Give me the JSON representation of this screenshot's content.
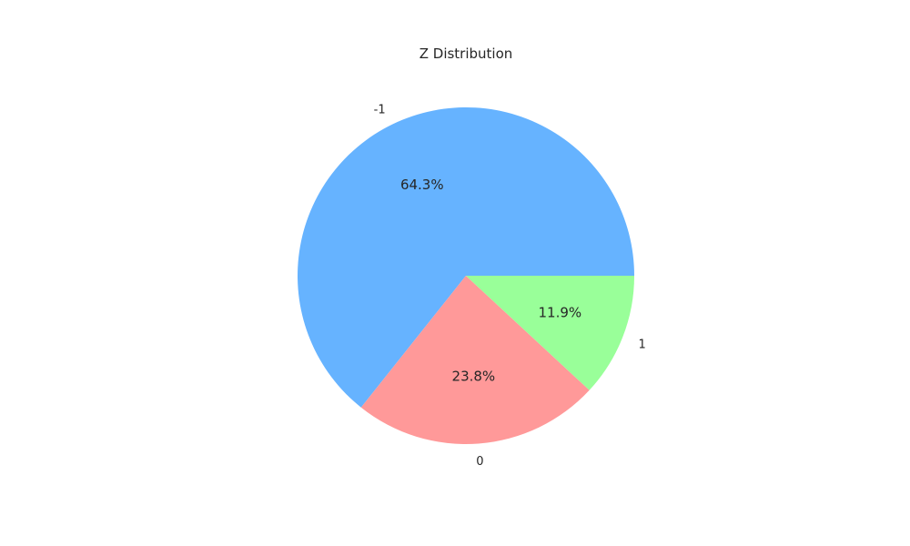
{
  "chart_data": {
    "type": "pie",
    "title": "Z Distribution",
    "categories": [
      "-1",
      "0",
      "1"
    ],
    "values": [
      64.3,
      23.8,
      11.9
    ],
    "percent_labels": [
      "64.3%",
      "23.8%",
      "11.9%"
    ],
    "colors": [
      "#66b3ff",
      "#ff9999",
      "#99ff99"
    ],
    "start_angle_deg": 0,
    "direction": "counterclockwise",
    "legend": "none"
  }
}
